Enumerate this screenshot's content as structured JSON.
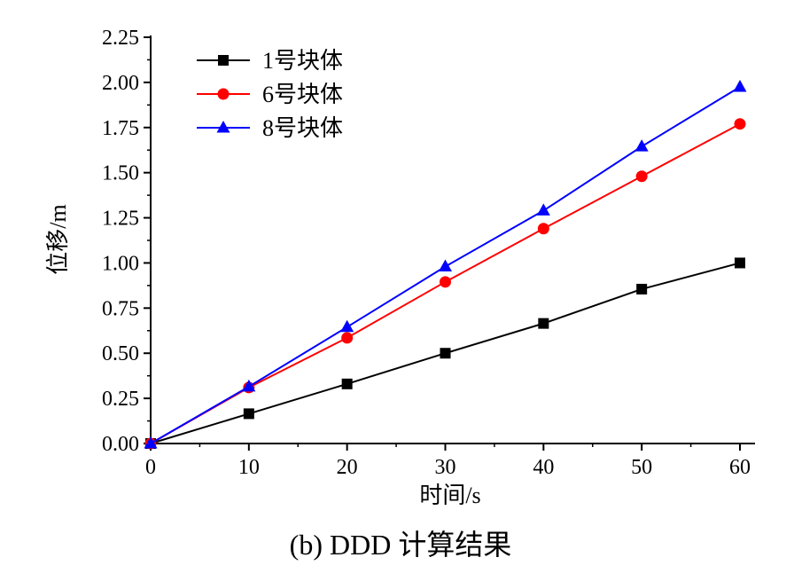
{
  "chart_data": {
    "type": "line",
    "title": "",
    "caption": "(b) DDD 计算结果",
    "xlabel": "时间/s",
    "ylabel": "位移/m",
    "xlim": [
      0,
      60
    ],
    "ylim": [
      0,
      2.25
    ],
    "x_ticks": [
      "0",
      "10",
      "20",
      "30",
      "40",
      "50",
      "60"
    ],
    "y_ticks": [
      "0.00",
      "0.25",
      "0.50",
      "0.75",
      "1.00",
      "1.25",
      "1.50",
      "1.75",
      "2.00",
      "2.25"
    ],
    "legend_position": "top-left",
    "grid": false,
    "x": [
      0,
      10,
      20,
      30,
      40,
      50,
      60
    ],
    "series": [
      {
        "name": "1号块体",
        "color": "#000000",
        "marker": "square",
        "values": [
          0.0,
          0.165,
          0.33,
          0.5,
          0.665,
          0.855,
          1.0
        ]
      },
      {
        "name": "6号块体",
        "color": "#ff0000",
        "marker": "circle",
        "values": [
          0.0,
          0.31,
          0.585,
          0.895,
          1.19,
          1.48,
          1.77
        ]
      },
      {
        "name": "8号块体",
        "color": "#0000ff",
        "marker": "triangle",
        "values": [
          0.0,
          0.315,
          0.645,
          0.98,
          1.29,
          1.645,
          1.975
        ]
      }
    ]
  }
}
